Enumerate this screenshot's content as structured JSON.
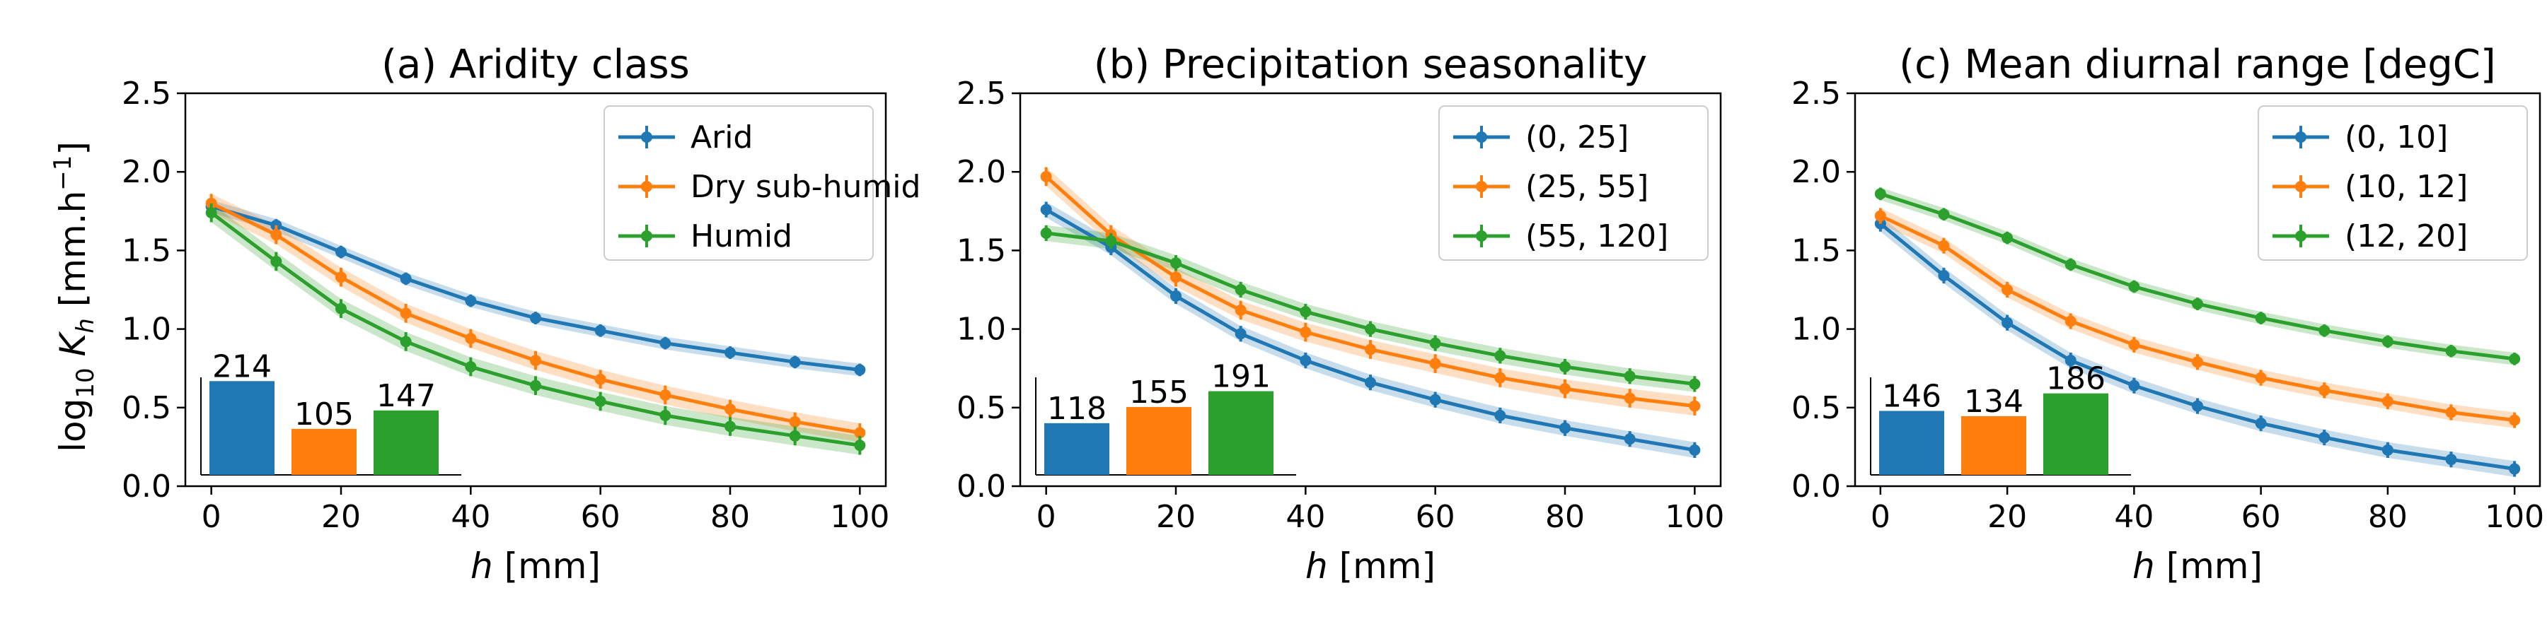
{
  "figure": {
    "ylabel": "log10 K_h [mm.h^-1]",
    "shared_xlabel": "h [mm]"
  },
  "colors": {
    "blue": "#1f77b4",
    "orange": "#ff7f0e",
    "green": "#2ca02c"
  },
  "chart_data": [
    {
      "type": "line",
      "title": "(a) Aridity class",
      "xlabel": "h [mm]",
      "ylabel": "log10 K_h [mm.h^-1]",
      "xlim": [
        -4,
        104
      ],
      "ylim": [
        0,
        2.5
      ],
      "xticks": [
        0,
        20,
        40,
        60,
        80,
        100
      ],
      "yticks": [
        0.0,
        0.5,
        1.0,
        1.5,
        2.0,
        2.5
      ],
      "xtick_labels": [
        "0",
        "20",
        "40",
        "60",
        "80",
        "100"
      ],
      "ytick_labels": [
        "0.0",
        "0.5",
        "1.0",
        "1.5",
        "2.0",
        "2.5"
      ],
      "grid": false,
      "legend": "upper-right",
      "x": [
        0,
        10,
        20,
        30,
        40,
        50,
        60,
        70,
        80,
        90,
        100
      ],
      "series": [
        {
          "name": "Arid",
          "color": "#1f77b4",
          "values": [
            1.78,
            1.66,
            1.49,
            1.32,
            1.18,
            1.07,
            0.99,
            0.91,
            0.85,
            0.79,
            0.74
          ],
          "band": 0.04
        },
        {
          "name": "Dry sub-humid",
          "color": "#ff7f0e",
          "values": [
            1.8,
            1.6,
            1.33,
            1.1,
            0.94,
            0.8,
            0.68,
            0.58,
            0.49,
            0.41,
            0.34
          ],
          "band": 0.06
        },
        {
          "name": "Humid",
          "color": "#2ca02c",
          "values": [
            1.74,
            1.43,
            1.13,
            0.92,
            0.76,
            0.64,
            0.54,
            0.45,
            0.38,
            0.32,
            0.26
          ],
          "band": 0.06
        }
      ],
      "inset_bar": {
        "values": [
          214,
          105,
          147
        ],
        "labels": [
          "214",
          "105",
          "147"
        ]
      }
    },
    {
      "type": "line",
      "title": "(b) Precipitation seasonality",
      "xlabel": "h [mm]",
      "xlim": [
        -4,
        104
      ],
      "ylim": [
        0,
        2.5
      ],
      "xticks": [
        0,
        20,
        40,
        60,
        80,
        100
      ],
      "yticks": [
        0.0,
        0.5,
        1.0,
        1.5,
        2.0,
        2.5
      ],
      "xtick_labels": [
        "0",
        "20",
        "40",
        "60",
        "80",
        "100"
      ],
      "ytick_labels": [
        "0.0",
        "0.5",
        "1.0",
        "1.5",
        "2.0",
        "2.5"
      ],
      "grid": false,
      "legend": "upper-right",
      "x": [
        0,
        10,
        20,
        30,
        40,
        50,
        60,
        70,
        80,
        90,
        100
      ],
      "series": [
        {
          "name": "(0, 25]",
          "color": "#1f77b4",
          "values": [
            1.76,
            1.52,
            1.21,
            0.97,
            0.8,
            0.66,
            0.55,
            0.45,
            0.37,
            0.3,
            0.23
          ],
          "band": 0.05
        },
        {
          "name": "(25, 55]",
          "color": "#ff7f0e",
          "values": [
            1.97,
            1.6,
            1.33,
            1.12,
            0.98,
            0.87,
            0.78,
            0.69,
            0.62,
            0.56,
            0.51
          ],
          "band": 0.06
        },
        {
          "name": "(55, 120]",
          "color": "#2ca02c",
          "values": [
            1.61,
            1.56,
            1.42,
            1.25,
            1.11,
            1.0,
            0.91,
            0.83,
            0.76,
            0.7,
            0.65
          ],
          "band": 0.05
        }
      ],
      "inset_bar": {
        "values": [
          118,
          155,
          191
        ],
        "labels": [
          "118",
          "155",
          "191"
        ]
      }
    },
    {
      "type": "line",
      "title": "(c) Mean diurnal range [degC]",
      "xlabel": "h [mm]",
      "xlim": [
        -4,
        104
      ],
      "ylim": [
        0,
        2.5
      ],
      "xticks": [
        0,
        20,
        40,
        60,
        80,
        100
      ],
      "yticks": [
        0.0,
        0.5,
        1.0,
        1.5,
        2.0,
        2.5
      ],
      "xtick_labels": [
        "0",
        "20",
        "40",
        "60",
        "80",
        "100"
      ],
      "ytick_labels": [
        "0.0",
        "0.5",
        "1.0",
        "1.5",
        "2.0",
        "2.5"
      ],
      "grid": false,
      "legend": "upper-right",
      "x": [
        0,
        10,
        20,
        30,
        40,
        50,
        60,
        70,
        80,
        90,
        100
      ],
      "series": [
        {
          "name": "(0, 10]",
          "color": "#1f77b4",
          "values": [
            1.67,
            1.34,
            1.04,
            0.8,
            0.64,
            0.51,
            0.4,
            0.31,
            0.23,
            0.17,
            0.11
          ],
          "band": 0.05
        },
        {
          "name": "(10, 12]",
          "color": "#ff7f0e",
          "values": [
            1.72,
            1.53,
            1.25,
            1.05,
            0.9,
            0.79,
            0.69,
            0.61,
            0.54,
            0.47,
            0.42
          ],
          "band": 0.05
        },
        {
          "name": "(12, 20]",
          "color": "#2ca02c",
          "values": [
            1.86,
            1.73,
            1.58,
            1.41,
            1.27,
            1.16,
            1.07,
            0.99,
            0.92,
            0.86,
            0.81
          ],
          "band": 0.04
        }
      ],
      "inset_bar": {
        "values": [
          146,
          134,
          186
        ],
        "labels": [
          "146",
          "134",
          "186"
        ]
      }
    }
  ]
}
